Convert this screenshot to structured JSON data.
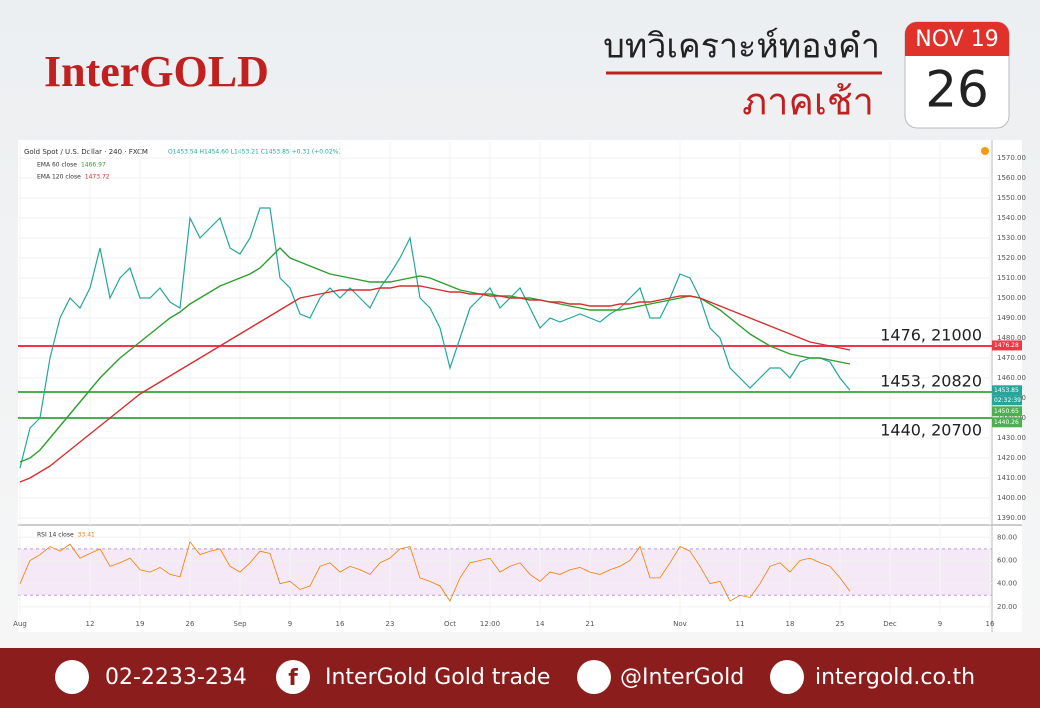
{
  "header": {
    "logo": "InterGOLD",
    "title": "บทวิเคราะห์ทองคำ",
    "subtitle": "ภาคเช้า",
    "month": "NOV 19",
    "day": 26
  },
  "chart_data": [
    {
      "type": "line",
      "title": "Gold Spot / U.S. Dollar · 240 · FXCM",
      "ohlc": "O1453.54 H1454.60 L1453.21 C1453.85 +0.31 (+0.02%)",
      "categories": [
        "Aug",
        null,
        null,
        null,
        null,
        null,
        null,
        "12",
        null,
        null,
        null,
        null,
        "19",
        null,
        null,
        null,
        null,
        "26",
        null,
        null,
        null,
        null,
        "Sep",
        null,
        null,
        null,
        null,
        "9",
        null,
        null,
        null,
        null,
        "16",
        null,
        null,
        null,
        null,
        "23",
        null,
        null,
        null,
        null,
        null,
        "Oct",
        null,
        null,
        null,
        "12:00",
        null,
        null,
        null,
        null,
        "14",
        null,
        null,
        null,
        null,
        "21",
        null,
        null,
        null,
        null,
        null,
        null,
        null,
        null,
        "Nov",
        null,
        null,
        null,
        null,
        null,
        "11",
        null,
        null,
        null,
        null,
        "18",
        null,
        null,
        null,
        null,
        "25",
        null,
        null,
        null,
        null,
        "Dec",
        null,
        null,
        null,
        null,
        "9",
        null,
        null,
        null,
        null,
        "16"
      ],
      "series": [
        {
          "color": "#26a69a",
          "values": [
            1415,
            1435,
            1440,
            1470,
            1490,
            1500,
            1495,
            1505,
            1525,
            1500,
            1510,
            1515,
            1500,
            1500,
            1505,
            1498,
            1495,
            1540,
            1530,
            1535,
            1540,
            1525,
            1522,
            1530,
            1545,
            1545,
            1510,
            1505,
            1492,
            1490,
            1500,
            1505,
            1500,
            1505,
            1500,
            1495,
            1505,
            1512,
            1520,
            1530,
            1500,
            1495,
            1485,
            1465,
            1480,
            1495,
            1500,
            1505,
            1495,
            1500,
            1505,
            1495,
            1485,
            1490,
            1488,
            1490,
            1492,
            1490,
            1488,
            1492,
            1495,
            1500,
            1505,
            1490,
            1490,
            1500,
            1512,
            1510,
            1500,
            1485,
            1480,
            1465,
            1460,
            1455,
            1460,
            1465,
            1465,
            1460,
            1468,
            1470,
            1470,
            1468,
            1460,
            1453.85,
            null,
            null,
            null,
            null,
            null,
            null,
            null,
            null,
            null,
            null,
            null,
            null,
            null,
            null
          ]
        },
        {
          "name": "EMA 60 close",
          "last": 1466.97,
          "color": "#2e9e2e",
          "values": [
            1418,
            1420,
            1424,
            1430,
            1436,
            1442,
            1448,
            1454,
            1460,
            1465,
            1470,
            1474,
            1478,
            1482,
            1486,
            1490,
            1493,
            1497,
            1500,
            1503,
            1506,
            1508,
            1510,
            1512,
            1515,
            1520,
            1525,
            1520,
            1518,
            1516,
            1514,
            1512,
            1511,
            1510,
            1509,
            1508,
            1508,
            1508,
            1509,
            1510,
            1511,
            1510,
            1508,
            1506,
            1504,
            1503,
            1502,
            1502,
            1501,
            1501,
            1500,
            1500,
            1499,
            1498,
            1497,
            1496,
            1495,
            1494,
            1494,
            1494,
            1494,
            1495,
            1496,
            1497,
            1498,
            1499,
            1500,
            1501,
            1500,
            1497,
            1494,
            1490,
            1486,
            1482,
            1479,
            1476,
            1474,
            1472,
            1471,
            1470,
            1470,
            1469,
            1468,
            1467,
            null,
            null,
            null,
            null,
            null,
            null,
            null,
            null,
            null,
            null,
            null,
            null,
            null,
            null
          ]
        },
        {
          "name": "EMA 120 close",
          "last": 1473.72,
          "color": "#d32f2f",
          "values": [
            1408,
            1410,
            1413,
            1416,
            1420,
            1424,
            1428,
            1432,
            1436,
            1440,
            1444,
            1448,
            1452,
            1455,
            1458,
            1461,
            1464,
            1467,
            1470,
            1473,
            1476,
            1479,
            1482,
            1485,
            1488,
            1491,
            1494,
            1497,
            1500,
            1501,
            1502,
            1503,
            1504,
            1504,
            1504,
            1504,
            1505,
            1505,
            1506,
            1506,
            1506,
            1505,
            1504,
            1503,
            1503,
            1502,
            1502,
            1501,
            1501,
            1500,
            1500,
            1499,
            1499,
            1498,
            1498,
            1497,
            1497,
            1496,
            1496,
            1496,
            1497,
            1497,
            1498,
            1498,
            1499,
            1500,
            1501,
            1501,
            1500,
            1498,
            1496,
            1494,
            1492,
            1490,
            1488,
            1486,
            1484,
            1482,
            1480,
            1478,
            1477,
            1476,
            1475,
            1474,
            null,
            null,
            null,
            null,
            null,
            null,
            null,
            null,
            null,
            null,
            null,
            null,
            null,
            null
          ]
        }
      ],
      "ylim": [
        1386.5,
        1578
      ],
      "yticks": [
        {
          "value": 1390,
          "label": "1390.00"
        },
        {
          "value": 1400,
          "label": "1400.00"
        },
        {
          "value": 1410,
          "label": "1410.00"
        },
        {
          "value": 1420,
          "label": "1420.00"
        },
        {
          "value": 1430,
          "label": "1430.00"
        },
        {
          "value": 1440,
          "label": "1440.00"
        },
        {
          "value": 1450,
          "label": "1450.00"
        },
        {
          "value": 1460,
          "label": "1460.00"
        },
        {
          "value": 1470,
          "label": "1470.00"
        },
        {
          "value": 1480,
          "label": "1480.00"
        },
        {
          "value": 1490,
          "label": "1490.00"
        },
        {
          "value": 1500,
          "label": "1500.00"
        },
        {
          "value": 1510,
          "label": "1510.00"
        },
        {
          "value": 1520,
          "label": "1520.00"
        },
        {
          "value": 1530,
          "label": "1530.00"
        },
        {
          "value": 1540,
          "label": "1540.00"
        },
        {
          "value": 1550,
          "label": "1550.00"
        },
        {
          "value": 1560,
          "label": "1560.00"
        },
        {
          "value": 1570,
          "label": "1570.00"
        }
      ],
      "grid": true,
      "levels": [
        {
          "value": 1476,
          "label": "1476, 21000",
          "color": "#f23645"
        },
        {
          "value": 1453,
          "label": "1453, 20820",
          "color": "#4caf50"
        },
        {
          "value": 1440,
          "label": "1440, 20700",
          "color": "#4caf50"
        }
      ],
      "price_tags": [
        {
          "value": 1476.28,
          "color": "#f23645"
        },
        {
          "value": 1453.85,
          "color": "#26a69a"
        },
        {
          "value": 1450.65,
          "color": "#4caf50"
        },
        {
          "value": 1440.26,
          "color": "#4caf50"
        }
      ],
      "countdown": "02:32:39"
    },
    {
      "type": "line",
      "series": [
        {
          "name": "RSI 14 close",
          "last": 33.41,
          "color": "#f57c00",
          "values": [
            40,
            60,
            65,
            72,
            68,
            74,
            62,
            66,
            70,
            55,
            58,
            62,
            52,
            50,
            54,
            48,
            46,
            76,
            65,
            68,
            70,
            55,
            50,
            58,
            68,
            66,
            40,
            42,
            35,
            38,
            55,
            58,
            50,
            55,
            52,
            48,
            58,
            62,
            70,
            72,
            45,
            42,
            38,
            25,
            45,
            58,
            60,
            62,
            50,
            55,
            58,
            48,
            42,
            50,
            48,
            52,
            54,
            50,
            48,
            52,
            55,
            60,
            72,
            45,
            45,
            58,
            72,
            68,
            55,
            40,
            42,
            25,
            30,
            28,
            40,
            55,
            58,
            50,
            60,
            62,
            58,
            55,
            45,
            33.41,
            null,
            null,
            null,
            null,
            null,
            null,
            null,
            null,
            null,
            null,
            null,
            null,
            null,
            null
          ]
        }
      ],
      "ylim": [
        13,
        88
      ],
      "yticks": [
        {
          "value": 20,
          "label": "20.00"
        },
        {
          "value": 40,
          "label": "40.00"
        },
        {
          "value": 60,
          "label": "60.00"
        },
        {
          "value": 80,
          "label": "80.00"
        }
      ],
      "band": [
        30,
        70
      ],
      "grid": true
    }
  ],
  "footer": {
    "phone": "02-2233-234",
    "facebook": "InterGold Gold trade",
    "line": "@InterGold",
    "website": "intergold.co.th"
  }
}
